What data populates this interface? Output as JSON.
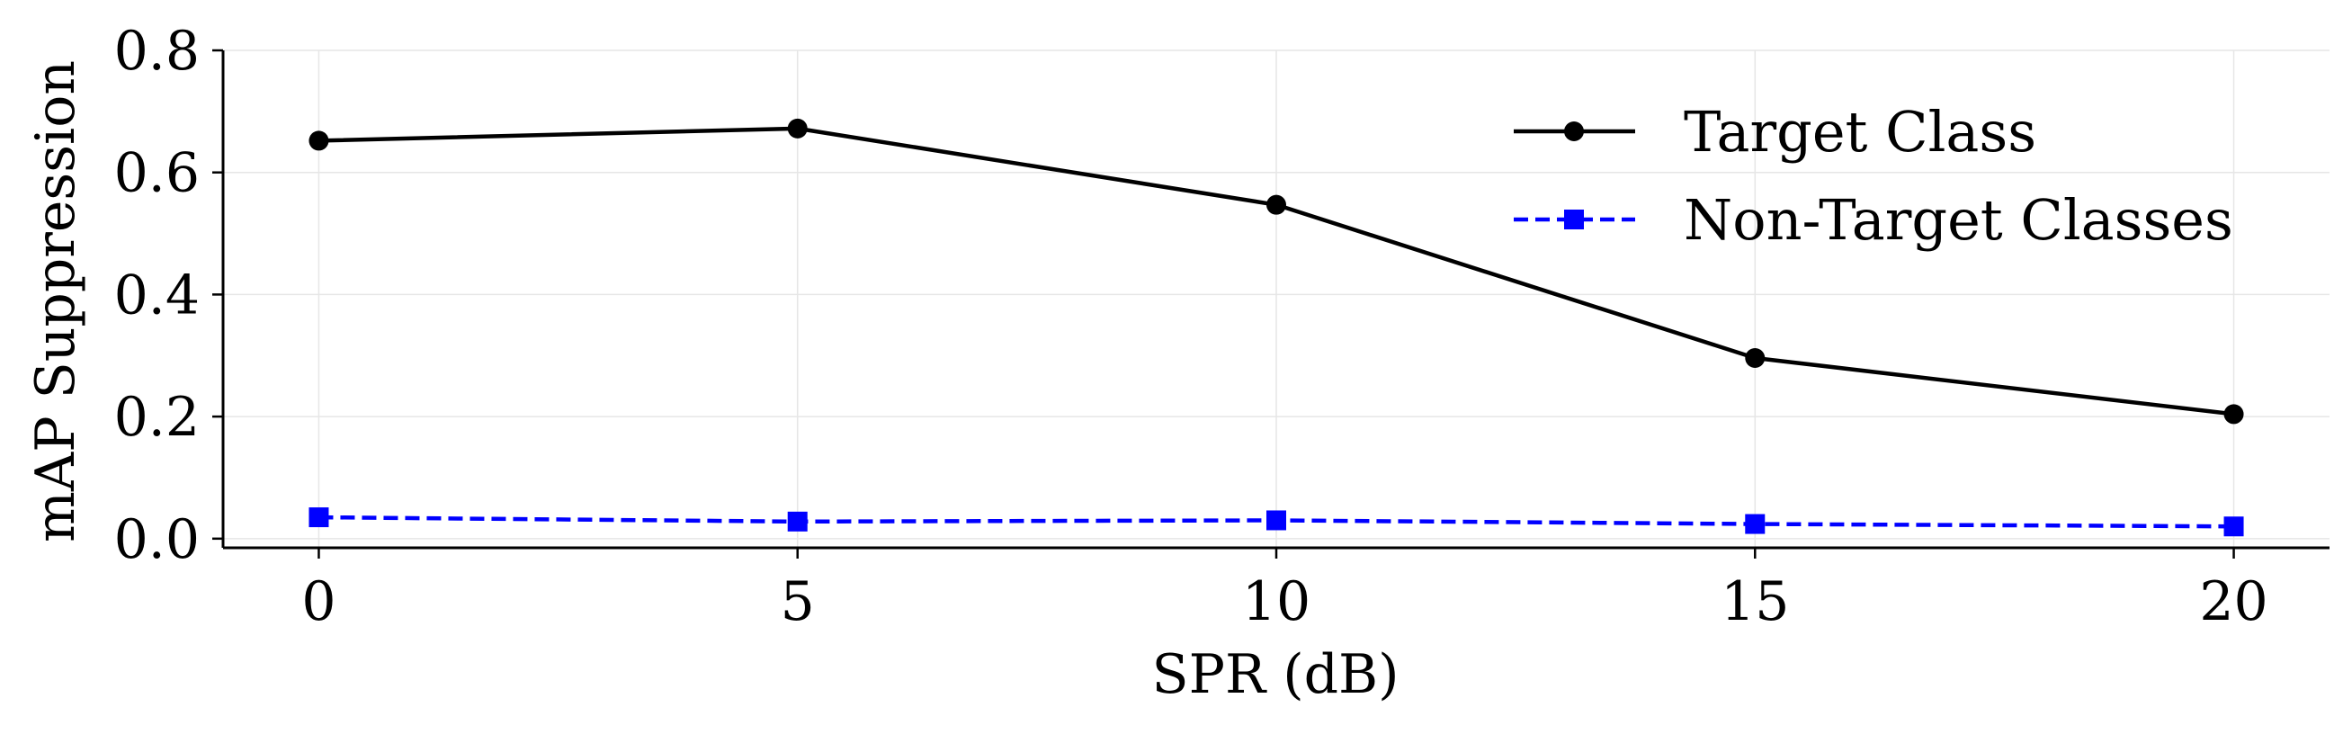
{
  "chart_data": {
    "type": "line",
    "title": "",
    "xlabel": "SPR (dB)",
    "ylabel": "mAP Suppression",
    "x": [
      0,
      5,
      10,
      15,
      20
    ],
    "xlim": [
      -1,
      21
    ],
    "ylim": [
      -0.015,
      0.8
    ],
    "xticks": [
      0,
      5,
      10,
      15,
      20
    ],
    "xtick_labels": [
      "0",
      "5",
      "10",
      "15",
      "20"
    ],
    "yticks": [
      0.0,
      0.2,
      0.4,
      0.6,
      0.8
    ],
    "ytick_labels": [
      "0.0",
      "0.2",
      "0.4",
      "0.6",
      "0.8"
    ],
    "grid": true,
    "legend_position": "top-right",
    "series": [
      {
        "name": "Target Class",
        "values": [
          0.652,
          0.672,
          0.547,
          0.296,
          0.204
        ],
        "color": "#000000",
        "line_style": "solid",
        "marker": "circle"
      },
      {
        "name": "Non-Target Classes",
        "values": [
          0.035,
          0.028,
          0.03,
          0.024,
          0.02
        ],
        "color": "#0000ff",
        "line_style": "dashed",
        "marker": "square"
      }
    ]
  }
}
